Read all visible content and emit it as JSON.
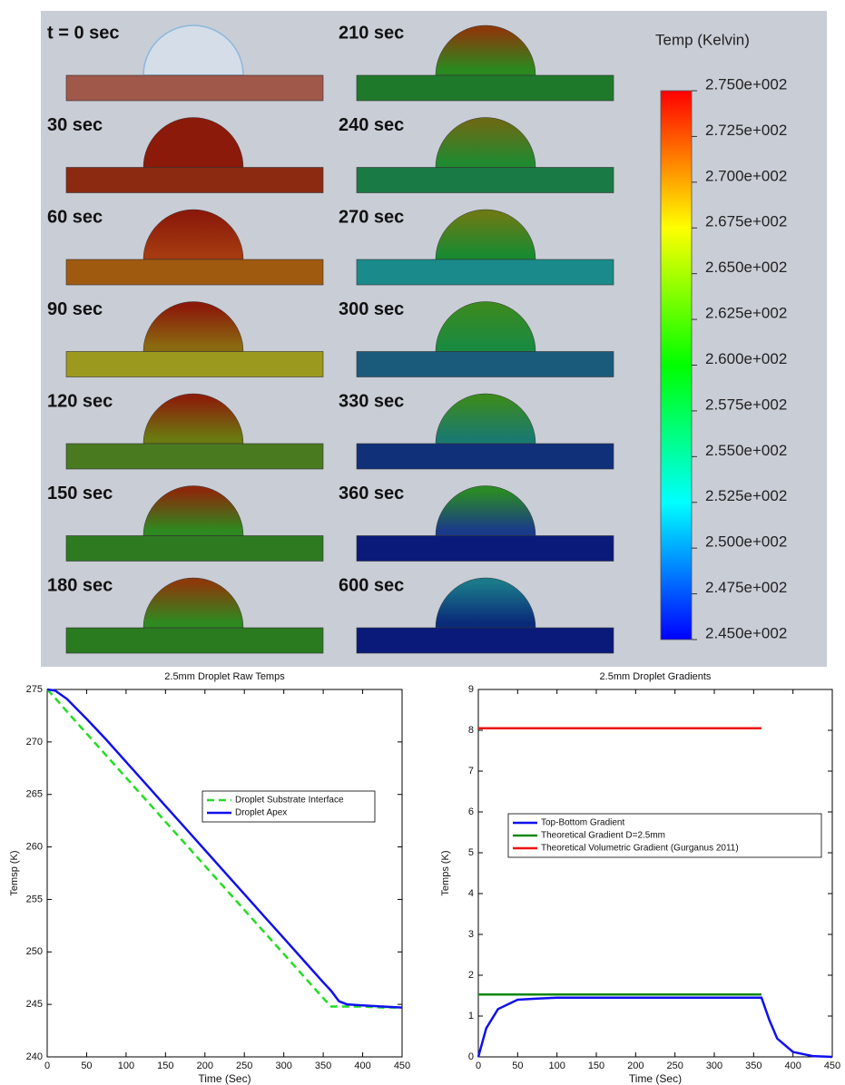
{
  "simulation": {
    "snapshots": [
      {
        "label": "t = 0 sec",
        "substrate_color": "#a0584a",
        "droplet_colors": [
          "#d4dde8",
          "#d4dde8"
        ]
      },
      {
        "label": "30 sec",
        "substrate_color": "#8b2a10",
        "droplet_colors": [
          "#8b1a0a",
          "#8b1a0a"
        ]
      },
      {
        "label": "60 sec",
        "substrate_color": "#a05a10",
        "droplet_colors": [
          "#8b1a0a",
          "#a53a10"
        ]
      },
      {
        "label": "90 sec",
        "substrate_color": "#9c9a1e",
        "droplet_colors": [
          "#8b1a0a",
          "#8a6a10"
        ]
      },
      {
        "label": "120 sec",
        "substrate_color": "#4a7a20",
        "droplet_colors": [
          "#8b200a",
          "#6a7a10"
        ]
      },
      {
        "label": "150 sec",
        "substrate_color": "#2e7a20",
        "droplet_colors": [
          "#8b2a0a",
          "#2e8a20"
        ]
      },
      {
        "label": "180 sec",
        "substrate_color": "#2a7a20",
        "droplet_colors": [
          "#8b3a0a",
          "#2e8a20"
        ]
      },
      {
        "label": "210 sec",
        "substrate_color": "#1e7a2a",
        "droplet_colors": [
          "#8a3a0a",
          "#2a8a20"
        ]
      },
      {
        "label": "240 sec",
        "substrate_color": "#1a7a45",
        "droplet_colors": [
          "#6a6a15",
          "#218a30"
        ]
      },
      {
        "label": "270 sec",
        "substrate_color": "#1a8a8a",
        "droplet_colors": [
          "#6a7a15",
          "#1a8a30"
        ]
      },
      {
        "label": "300 sec",
        "substrate_color": "#1a5a7a",
        "droplet_colors": [
          "#3a8a20",
          "#1a8a40"
        ]
      },
      {
        "label": "330 sec",
        "substrate_color": "#10307a",
        "droplet_colors": [
          "#3a8a20",
          "#1a7a70"
        ]
      },
      {
        "label": "360 sec",
        "substrate_color": "#0a1a7a",
        "droplet_colors": [
          "#2a8a25",
          "#1a3a8a"
        ]
      },
      {
        "label": "600 sec",
        "substrate_color": "#0a1a7a",
        "droplet_colors": [
          "#1a7a8a",
          "#0a2a7a"
        ]
      }
    ],
    "colorbar": {
      "title": "Temp (Kelvin)",
      "colormap": [
        "#ff0000",
        "#ffff00",
        "#00ff00",
        "#00ffff",
        "#0000ff"
      ],
      "ylim": [
        245,
        275
      ],
      "ticks": [
        {
          "value": 275,
          "label": "2.750e+002"
        },
        {
          "value": 272.5,
          "label": "2.725e+002"
        },
        {
          "value": 270,
          "label": "2.700e+002"
        },
        {
          "value": 267.5,
          "label": "2.675e+002"
        },
        {
          "value": 265,
          "label": "2.650e+002"
        },
        {
          "value": 262.5,
          "label": "2.625e+002"
        },
        {
          "value": 260,
          "label": "2.600e+002"
        },
        {
          "value": 257.5,
          "label": "2.575e+002"
        },
        {
          "value": 255,
          "label": "2.550e+002"
        },
        {
          "value": 252.5,
          "label": "2.525e+002"
        },
        {
          "value": 250,
          "label": "2.500e+002"
        },
        {
          "value": 247.5,
          "label": "2.475e+002"
        },
        {
          "value": 245,
          "label": "2.450e+002"
        }
      ]
    }
  },
  "chart_data": [
    {
      "type": "line",
      "title": "2.5mm Droplet Raw Temps",
      "x_label": "Time (Sec)",
      "y_label": "Temsp (K)",
      "x": [
        0,
        10,
        25,
        50,
        75,
        100,
        125,
        150,
        175,
        200,
        225,
        250,
        275,
        300,
        325,
        350,
        360,
        370,
        380,
        400,
        425,
        450
      ],
      "xlim": [
        0,
        450
      ],
      "xticks": [
        0,
        50,
        100,
        150,
        200,
        250,
        300,
        350,
        400,
        450
      ],
      "ylim": [
        240,
        275
      ],
      "yticks": [
        240,
        245,
        250,
        255,
        260,
        265,
        270,
        275
      ],
      "legend": "right",
      "series": [
        {
          "name": "Droplet Substrate Interface",
          "color": "#22dd22",
          "line_style": "dashed",
          "values": [
            275,
            274.2,
            272.9,
            270.8,
            268.7,
            266.6,
            264.5,
            262.4,
            260.3,
            258.2,
            256.1,
            254.0,
            251.9,
            249.8,
            247.7,
            245.6,
            244.8,
            244.8,
            244.8,
            244.8,
            244.7,
            244.7
          ]
        },
        {
          "name": "Droplet Apex",
          "color": "#1010ee",
          "line_style": "solid",
          "values": [
            275,
            274.9,
            274.1,
            272.2,
            270.2,
            268.1,
            266.0,
            263.9,
            261.8,
            259.7,
            257.6,
            255.5,
            253.4,
            251.3,
            249.2,
            247.1,
            246.3,
            245.3,
            245.0,
            244.9,
            244.8,
            244.7
          ]
        }
      ]
    },
    {
      "type": "line",
      "title": "2.5mm Droplet Gradients",
      "x_label": "Time (Sec)",
      "y_label": "Temps (K)",
      "x": [
        0,
        10,
        25,
        50,
        75,
        100,
        125,
        150,
        175,
        200,
        225,
        250,
        275,
        300,
        325,
        350,
        360,
        370,
        380,
        400,
        425,
        450
      ],
      "xlim": [
        0,
        450
      ],
      "xticks": [
        0,
        50,
        100,
        150,
        200,
        250,
        300,
        350,
        400,
        450
      ],
      "ylim": [
        0,
        9
      ],
      "yticks": [
        0,
        1,
        2,
        3,
        4,
        5,
        6,
        7,
        8,
        9
      ],
      "legend": "left",
      "series": [
        {
          "name": "Top-Bottom Gradient",
          "color": "#1010ee",
          "line_style": "solid",
          "values": [
            0,
            0.7,
            1.17,
            1.4,
            1.43,
            1.45,
            1.45,
            1.45,
            1.45,
            1.45,
            1.45,
            1.45,
            1.45,
            1.45,
            1.45,
            1.45,
            1.45,
            0.9,
            0.45,
            0.12,
            0.02,
            0
          ]
        },
        {
          "name": "Theoretical Gradient D=2.5mm",
          "color": "#118811",
          "line_style": "solid",
          "values": [
            1.53,
            1.53,
            1.53,
            1.53,
            1.53,
            1.53,
            1.53,
            1.53,
            1.53,
            1.53,
            1.53,
            1.53,
            1.53,
            1.53,
            1.53,
            1.53,
            1.53,
            null,
            null,
            null,
            null,
            null
          ]
        },
        {
          "name": "Theoretical Volumetric Gradient (Gurganus 2011)",
          "color": "#ee1111",
          "line_style": "solid",
          "values": [
            8.05,
            8.05,
            8.05,
            8.05,
            8.05,
            8.05,
            8.05,
            8.05,
            8.05,
            8.05,
            8.05,
            8.05,
            8.05,
            8.05,
            8.05,
            8.05,
            8.05,
            null,
            null,
            null,
            null,
            null
          ]
        }
      ]
    }
  ]
}
